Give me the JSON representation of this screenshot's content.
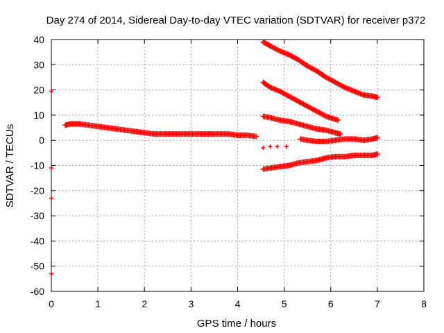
{
  "chart_data": {
    "type": "scatter",
    "title": "Day 274 of 2014, Sidereal Day-to-day VTEC variation (SDTVAR) for receiver p372",
    "xlabel": "GPS time / hours",
    "ylabel": "SDTVAR / TECUs",
    "xlim": [
      0,
      8
    ],
    "ylim": [
      -60,
      40
    ],
    "xticks": [
      0,
      1,
      2,
      3,
      4,
      5,
      6,
      7,
      8
    ],
    "yticks": [
      -60,
      -50,
      -40,
      -30,
      -20,
      -10,
      0,
      10,
      20,
      30,
      40
    ],
    "grid": true,
    "marker": "+",
    "color": "#ff0000",
    "series": [
      {
        "x": [
          0.0,
          0.0,
          0.0,
          0.0
        ],
        "y": [
          19.5,
          -11,
          -23,
          -53
        ]
      },
      {
        "x": [
          0.3,
          0.4,
          0.5,
          0.6,
          0.8,
          1.0,
          1.2,
          1.4,
          1.6,
          1.8,
          2.0,
          2.2,
          2.4,
          2.6,
          2.8,
          3.0,
          3.2,
          3.4,
          3.6,
          3.8,
          4.0,
          4.2,
          4.4
        ],
        "y": [
          6,
          6.5,
          6.5,
          6.5,
          6,
          5.5,
          5,
          4.5,
          4,
          3.5,
          3,
          2.5,
          2.5,
          2.5,
          2.5,
          2.5,
          2.5,
          2.5,
          2.5,
          2.5,
          2,
          2,
          1.5
        ]
      },
      {
        "x": [
          4.55,
          4.7,
          4.9,
          5.1,
          5.3,
          5.5,
          5.7,
          5.9,
          6.1,
          6.3,
          6.5,
          6.7,
          6.9,
          7.0
        ],
        "y": [
          39,
          37.5,
          35.5,
          34,
          32,
          29.5,
          27.5,
          25,
          23,
          21,
          19.5,
          18,
          17.5,
          17
        ]
      },
      {
        "x": [
          4.55,
          4.7,
          4.9,
          5.1,
          5.3,
          5.5,
          5.7,
          5.9,
          6.15
        ],
        "y": [
          23,
          21,
          19.5,
          17.5,
          15.5,
          13.5,
          11.5,
          9.5,
          8
        ]
      },
      {
        "x": [
          4.55,
          4.7,
          4.9,
          5.1,
          5.3,
          5.5,
          5.7,
          5.9,
          6.1,
          6.2
        ],
        "y": [
          9.5,
          9,
          8,
          7.5,
          6.5,
          5.5,
          4.5,
          4,
          3,
          2.5
        ]
      },
      {
        "x": [
          4.55,
          4.7,
          4.85,
          5.05
        ],
        "y": [
          -3,
          -2.5,
          -2.5,
          -2.5
        ]
      },
      {
        "x": [
          5.35,
          5.5,
          5.7,
          5.9,
          6.1,
          6.3,
          6.5,
          6.7,
          6.9,
          7.0
        ],
        "y": [
          0.5,
          0,
          -0.5,
          -0.5,
          0,
          0.5,
          0.5,
          0,
          0.5,
          1
        ]
      },
      {
        "x": [
          4.55,
          4.7,
          4.9,
          5.1,
          5.3,
          5.5,
          5.7,
          5.9,
          6.1,
          6.3,
          6.5,
          6.7,
          6.9,
          7.0
        ],
        "y": [
          -11.5,
          -11,
          -10.5,
          -10,
          -9,
          -8.5,
          -8,
          -7,
          -6.5,
          -6.5,
          -6,
          -6,
          -6,
          -5.5
        ]
      }
    ]
  }
}
